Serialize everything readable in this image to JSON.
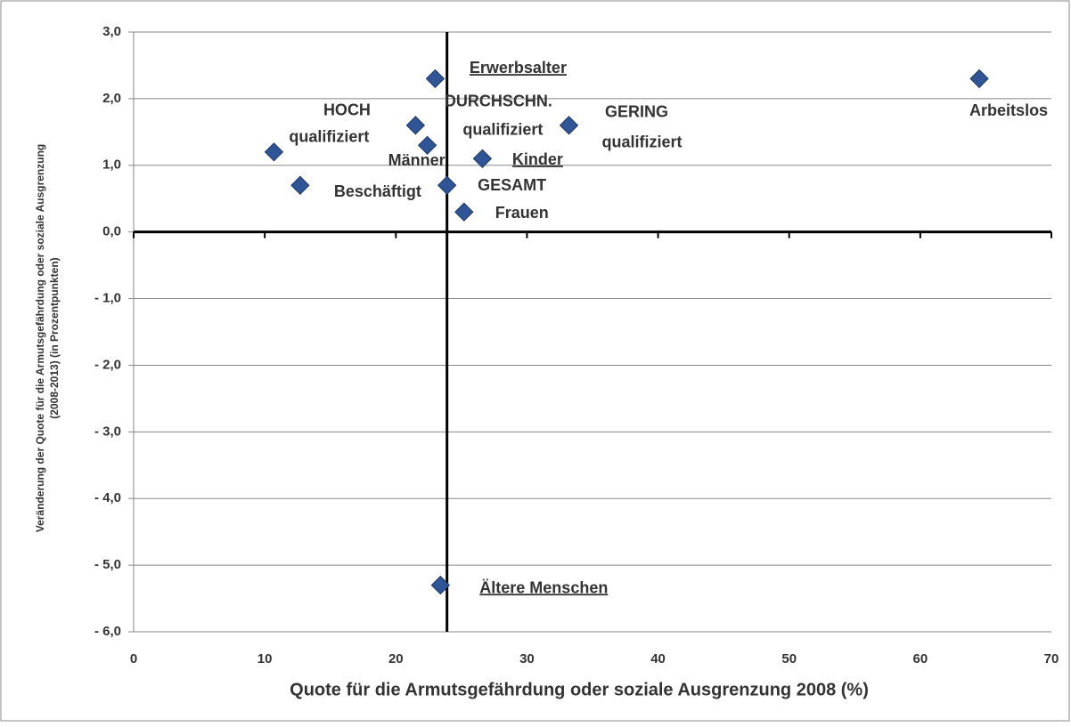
{
  "chart_data": {
    "type": "scatter",
    "x_label": "Quote für die Armutsgefährdung oder soziale Ausgrenzung 2008 (%)",
    "y_label": [
      "Veränderung der Quote für die Armutsgefährdung oder soziale Ausgrenzung",
      "(2008-2013) (in Prozentpunkten)"
    ],
    "x": [
      23.0,
      64.5,
      10.7,
      12.7,
      21.5,
      22.4,
      33.2,
      26.6,
      23.9,
      25.2,
      23.4
    ],
    "values": [
      2.3,
      2.3,
      1.2,
      0.7,
      1.6,
      1.3,
      1.6,
      1.1,
      0.7,
      0.3,
      -5.3
    ],
    "point_labels": [
      [
        "Erwerbsalter"
      ],
      [
        "Arbeitslos"
      ],
      [
        "HOCH",
        "qualifiziert"
      ],
      [
        "Beschäftigt"
      ],
      [
        "DURCHSCHN.",
        "qualifiziert"
      ],
      [
        "Männer"
      ],
      [
        "GERING",
        "qualifiziert"
      ],
      [
        "Kinder"
      ],
      [
        "GESAMT"
      ],
      [
        "Frauen"
      ],
      [
        "Ältere Menschen"
      ]
    ],
    "underlined": [
      true,
      false,
      false,
      false,
      false,
      false,
      false,
      true,
      false,
      false,
      true
    ],
    "color": "#2f5597",
    "reference_x": 23.9,
    "xlim": [
      0,
      70
    ],
    "xticks": [
      0,
      10,
      20,
      30,
      40,
      50,
      60,
      70
    ],
    "ylim": [
      -6,
      3
    ],
    "yticks": [
      {
        "value": 3,
        "label": "3,0"
      },
      {
        "value": 2,
        "label": "2,0"
      },
      {
        "value": 1,
        "label": "1,0"
      },
      {
        "value": 0,
        "label": "0,0"
      },
      {
        "value": -1,
        "label": "- 1,0"
      },
      {
        "value": -2,
        "label": "- 2,0"
      },
      {
        "value": -3,
        "label": "- 3,0"
      },
      {
        "value": -4,
        "label": "- 4,0"
      },
      {
        "value": -5,
        "label": "- 5,0"
      },
      {
        "value": -6,
        "label": "- 6,0"
      }
    ],
    "grid": true
  }
}
